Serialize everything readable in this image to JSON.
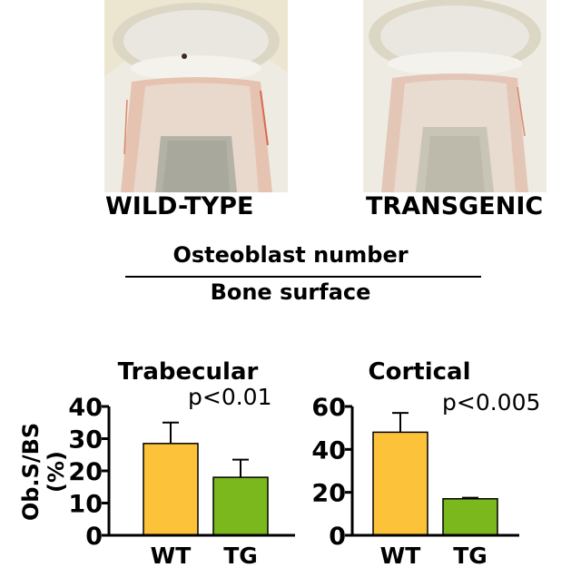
{
  "panels": {
    "wt_caption": "WILD-TYPE",
    "tg_caption": "TRANSGENIC"
  },
  "fraction": {
    "numerator": "Osteoblast number",
    "denominator": "Bone surface"
  },
  "chart_data": [
    {
      "type": "bar",
      "title": "Trabecular",
      "ylabel": "Ob.S/BS (%)",
      "categories": [
        "WT",
        "TG"
      ],
      "values": [
        28.5,
        18.0
      ],
      "errors": [
        6.5,
        5.5
      ],
      "ylim": [
        0,
        40
      ],
      "yticks": [
        "0",
        "10",
        "20",
        "30",
        "40"
      ],
      "annotation": "p<0.01",
      "colors": [
        "#fcc23a",
        "#7ab81d"
      ]
    },
    {
      "type": "bar",
      "title": "Cortical",
      "categories": [
        "WT",
        "TG"
      ],
      "values": [
        48.0,
        17.0
      ],
      "errors": [
        9.0,
        0.5
      ],
      "ylim": [
        0,
        60
      ],
      "yticks": [
        "0",
        "20",
        "40",
        "60"
      ],
      "annotation": "p<0.005",
      "colors": [
        "#fcc23a",
        "#7ab81d"
      ]
    }
  ]
}
